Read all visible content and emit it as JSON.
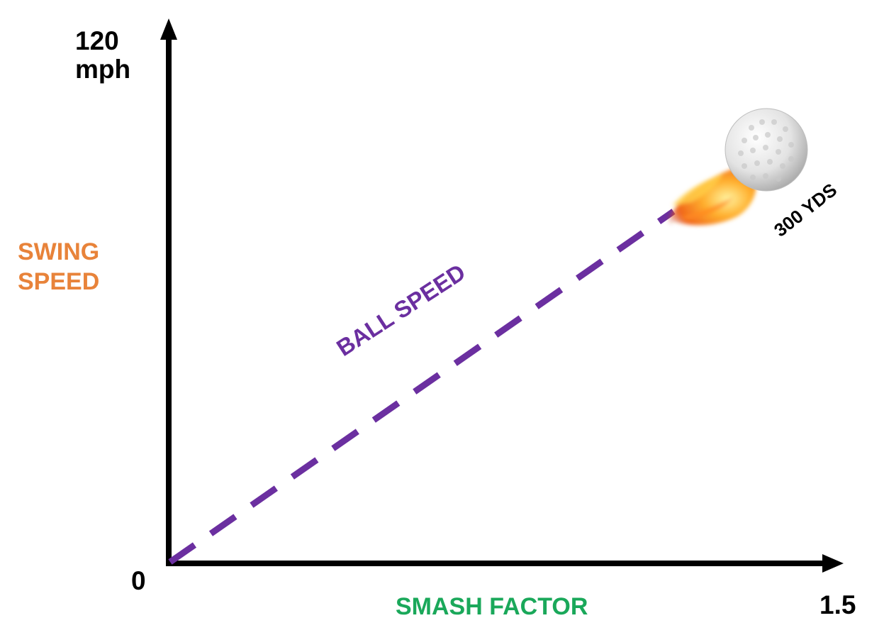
{
  "y_axis": {
    "max_value": "120",
    "max_unit": "mph",
    "min_value": "0",
    "title_lines": [
      "SWING",
      "SPEED"
    ],
    "title_color": "#E8833A"
  },
  "x_axis": {
    "max_value": "1.5",
    "title": "SMASH FACTOR",
    "title_color": "#1AA85A"
  },
  "curve": {
    "label": "BALL SPEED",
    "color": "#6B2FA0",
    "style": "dashed"
  },
  "ball": {
    "label": "300 YDS",
    "icon": "flaming-golf-ball-icon"
  }
}
